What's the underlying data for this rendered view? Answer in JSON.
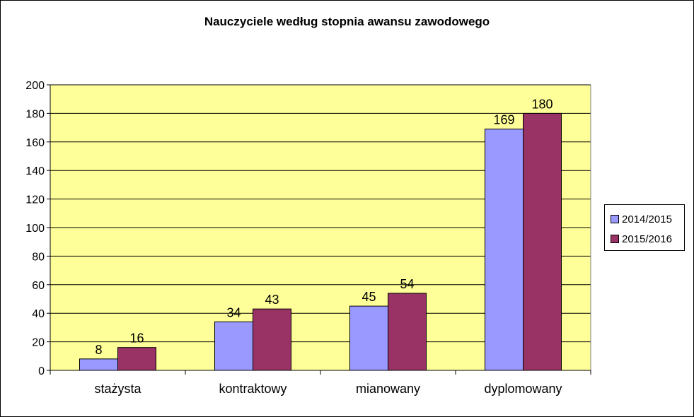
{
  "chart_data": {
    "type": "bar",
    "title": "Nauczyciele według stopnia awansu zawodowego",
    "xlabel": "",
    "ylabel": "",
    "categories": [
      "stażysta",
      "kontraktowy",
      "mianowany",
      "dyplomowany"
    ],
    "series": [
      {
        "name": "2014/2015",
        "color": "#9999FF",
        "values": [
          8,
          34,
          45,
          169
        ]
      },
      {
        "name": "2015/2016",
        "color": "#993366",
        "values": [
          16,
          43,
          54,
          180
        ]
      }
    ],
    "ylim": [
      0,
      200
    ],
    "yticks": [
      0,
      20,
      40,
      60,
      80,
      100,
      120,
      140,
      160,
      180,
      200
    ],
    "grid": true,
    "plot_background": "#FFFF99",
    "legend_position": "right"
  }
}
